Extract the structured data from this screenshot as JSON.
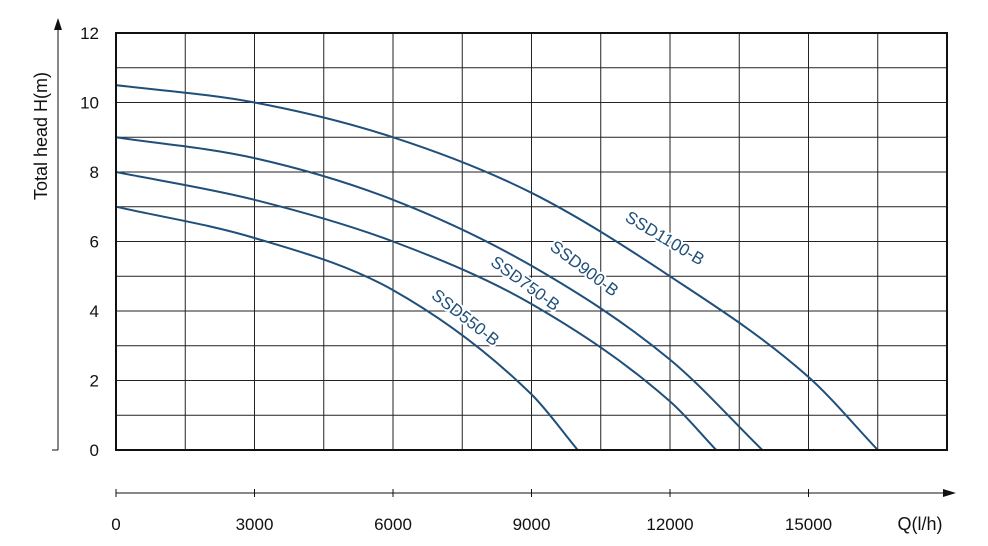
{
  "chart_data": {
    "type": "line",
    "ylabel": "Total head  H(m)",
    "xlabel": "Q(l/h)",
    "xlim": [
      0,
      18000
    ],
    "ylim": [
      0,
      12
    ],
    "x_ticks": [
      0,
      3000,
      6000,
      9000,
      12000,
      15000
    ],
    "x_tick_labels": [
      "0",
      "3000",
      "6000",
      "9000",
      "12000",
      "15000"
    ],
    "y_ticks": [
      0,
      2,
      4,
      6,
      8,
      10,
      12
    ],
    "y_tick_labels": [
      "0",
      "2",
      "4",
      "6",
      "8",
      "10",
      "12"
    ],
    "grid": true,
    "line_color": "#1f4f7a",
    "series": [
      {
        "name": "SSD1100-B",
        "x": [
          0,
          3000,
          6000,
          9000,
          12000,
          15000,
          16500
        ],
        "y": [
          10.5,
          10.0,
          9.0,
          7.4,
          5.0,
          2.1,
          0.0
        ]
      },
      {
        "name": "SSD900-B",
        "x": [
          0,
          3000,
          6000,
          9000,
          12000,
          14000
        ],
        "y": [
          9.0,
          8.4,
          7.2,
          5.3,
          2.6,
          0.0
        ]
      },
      {
        "name": "SSD750-B",
        "x": [
          0,
          3000,
          6000,
          9000,
          12000,
          13000
        ],
        "y": [
          8.0,
          7.2,
          6.0,
          4.2,
          1.4,
          0.0
        ]
      },
      {
        "name": "SSD550-B",
        "x": [
          0,
          3000,
          6000,
          9000,
          10000
        ],
        "y": [
          7.0,
          6.1,
          4.6,
          1.6,
          0.0
        ]
      }
    ]
  }
}
